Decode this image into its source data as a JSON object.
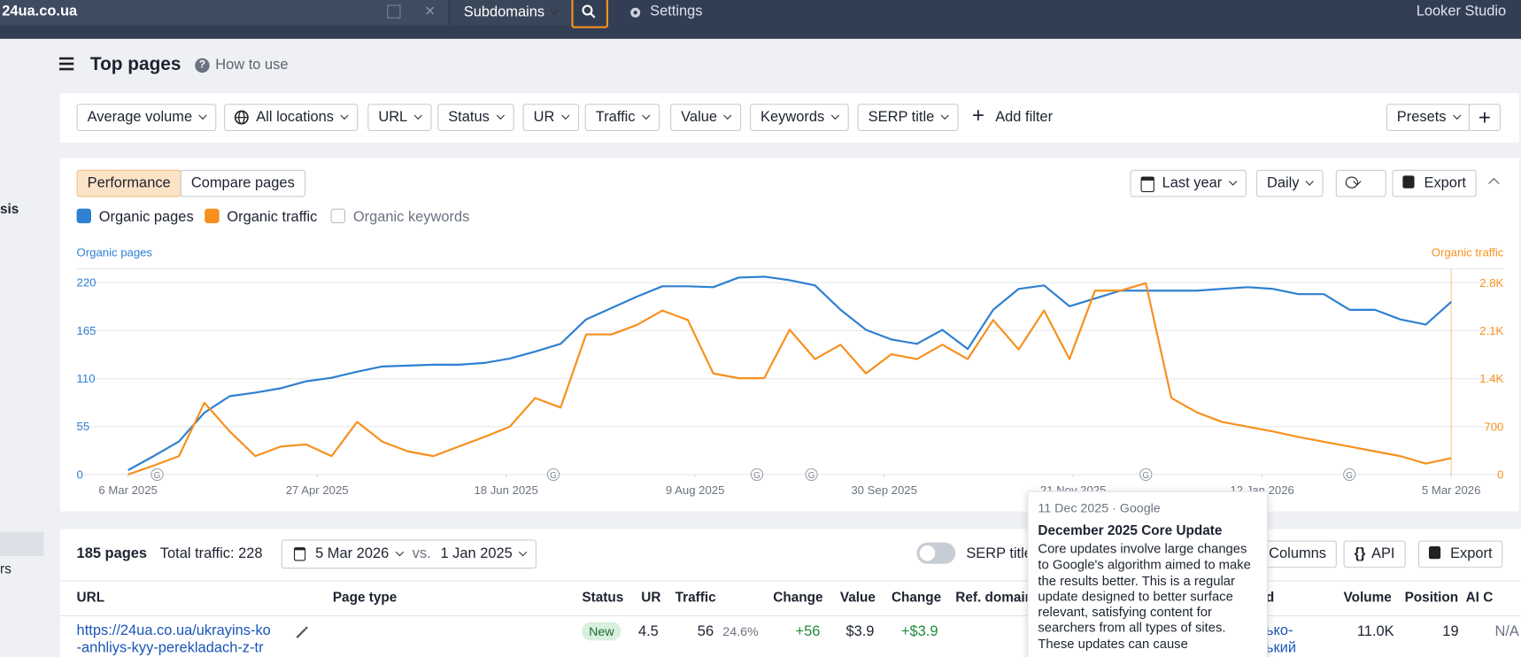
{
  "topbar": {
    "domain": "24ua.co.ua",
    "mode": "Subdomains",
    "settings": "Settings",
    "looker": "Looker Studio"
  },
  "sidebar": {
    "items": [
      "sis",
      "rs"
    ]
  },
  "header": {
    "title": "Top pages",
    "help": "How to use"
  },
  "filters": {
    "items": [
      "Average volume",
      "All locations",
      "URL",
      "Status",
      "UR",
      "Traffic",
      "Value",
      "Keywords",
      "SERP title"
    ],
    "add": "Add filter",
    "presets": "Presets"
  },
  "chart_panel": {
    "tabs": [
      "Performance",
      "Compare pages"
    ],
    "period": "Last year",
    "interval": "Daily",
    "export": "Export",
    "metric_off": "Organic keywords"
  },
  "chart_data": {
    "type": "line",
    "y_title": "Organic pages",
    "y2_title": "Organic traffic",
    "x": [
      "2025-03-06",
      "2025-03-13",
      "2025-03-20",
      "2025-03-27",
      "2025-04-03",
      "2025-04-10",
      "2025-04-17",
      "2025-04-24",
      "2025-05-01",
      "2025-05-08",
      "2025-05-15",
      "2025-05-22",
      "2025-05-29",
      "2025-06-05",
      "2025-06-12",
      "2025-06-19",
      "2025-06-26",
      "2025-07-03",
      "2025-07-10",
      "2025-07-17",
      "2025-07-24",
      "2025-07-31",
      "2025-08-07",
      "2025-08-14",
      "2025-08-21",
      "2025-08-28",
      "2025-09-04",
      "2025-09-11",
      "2025-09-18",
      "2025-09-25",
      "2025-10-02",
      "2025-10-09",
      "2025-10-16",
      "2025-10-23",
      "2025-10-30",
      "2025-11-06",
      "2025-11-13",
      "2025-11-20",
      "2025-11-27",
      "2025-12-04",
      "2025-12-11",
      "2025-12-18",
      "2025-12-25",
      "2026-01-01",
      "2026-01-08",
      "2026-01-15",
      "2026-01-22",
      "2026-01-29",
      "2026-02-05",
      "2026-02-12",
      "2026-02-19",
      "2026-02-26",
      "2026-03-05"
    ],
    "series": [
      {
        "name": "Organic pages",
        "color": "#2f80d1",
        "values": [
          5,
          21,
          38,
          71,
          90,
          94,
          99,
          107,
          111,
          118,
          124,
          125,
          126,
          126,
          128,
          133,
          141,
          150,
          178,
          191,
          204,
          216,
          216,
          215,
          226,
          227,
          223,
          217,
          189,
          166,
          155,
          150,
          166,
          144,
          189,
          213,
          217,
          193,
          202,
          211,
          211,
          211,
          211,
          213,
          215,
          213,
          207,
          207,
          189,
          189,
          178,
          172,
          198
        ]
      },
      {
        "name": "Organic traffic",
        "color": "#f7901e",
        "axis": "y2",
        "values": [
          0,
          130,
          270,
          1050,
          630,
          270,
          410,
          440,
          270,
          770,
          480,
          340,
          270,
          410,
          550,
          700,
          1120,
          980,
          2050,
          2050,
          2190,
          2400,
          2260,
          1480,
          1410,
          1410,
          2120,
          1690,
          1900,
          1480,
          1760,
          1690,
          1900,
          1690,
          2260,
          1830,
          2400,
          1690,
          2690,
          2690,
          2800,
          1120,
          910,
          770,
          700,
          630,
          550,
          480,
          410,
          340,
          270,
          160,
          240
        ]
      }
    ],
    "xlim": [
      "2025-03-06",
      "2026-03-05"
    ],
    "xticks": [
      {
        "value": "2025-03-06",
        "label": "6 Mar 2025"
      },
      {
        "value": "2025-04-27",
        "label": "27 Apr 2025"
      },
      {
        "value": "2025-06-18",
        "label": "18 Jun 2025"
      },
      {
        "value": "2025-08-09",
        "label": "9 Aug 2025"
      },
      {
        "value": "2025-09-30",
        "label": "30 Sep 2025"
      },
      {
        "value": "2025-11-21",
        "label": "21 Nov 2025"
      },
      {
        "value": "2026-01-12",
        "label": "12 Jan 2026"
      },
      {
        "value": "2026-03-05",
        "label": "5 Mar 2026"
      }
    ],
    "ylim": [
      0,
      236
    ],
    "yticks": [
      0,
      55,
      110,
      165,
      220
    ],
    "y2lim": [
      0,
      3010
    ],
    "y2ticks": [
      0,
      700,
      {
        "value": 1400,
        "label": "1.4K"
      },
      {
        "value": 2100,
        "label": "2.1K"
      },
      {
        "value": 2800,
        "label": "2.8K"
      }
    ],
    "grid": true,
    "events": [
      {
        "x": "2025-03-14",
        "label": "G"
      },
      {
        "x": "2025-07-01",
        "label": "G"
      },
      {
        "x": "2025-08-26",
        "label": "G"
      },
      {
        "x": "2025-09-10",
        "label": "G"
      },
      {
        "x": "2025-12-11",
        "label": "G"
      },
      {
        "x": "2026-02-05",
        "label": "G"
      }
    ]
  },
  "tooltip": {
    "date": "11 Dec 2025 · Google",
    "title": "December 2025 Core Update",
    "lines": [
      "Core updates involve large changes",
      "to Google's algorithm aimed to make",
      "the results better. This is a regular",
      "update designed to better surface",
      "relevant, satisfying content for",
      "searchers from all types of sites.",
      "These updates can cause"
    ]
  },
  "table": {
    "summary": {
      "pages": "185 pages",
      "traffic": "Total traffic: 228",
      "date_a": "5 Mar 2026",
      "vs": "vs.",
      "date_b": "1 Jan 2025",
      "serp_toggle": "SERP title",
      "columns": "Columns",
      "api": "API",
      "export": "Export"
    },
    "columns": [
      "URL",
      "Page type",
      "Status",
      "UR",
      "Traffic",
      "Change",
      "Value",
      "Change",
      "Ref. domain",
      "d",
      "Volume",
      "Position",
      "AI C"
    ],
    "rows": [
      {
        "url": [
          "https://24ua.co.ua/ukrayins-ko",
          "-anhliys-kyy-perekladach-z-tr"
        ],
        "status": "New",
        "ur": "4.5",
        "traffic": "56",
        "share": "24.6%",
        "change": "+56",
        "value": "$3.9",
        "value_change": "+$3.9",
        "keyword": [
          "ько-",
          "ький"
        ],
        "volume": "11.0K",
        "position": "19",
        "ai": "N/A"
      }
    ]
  }
}
